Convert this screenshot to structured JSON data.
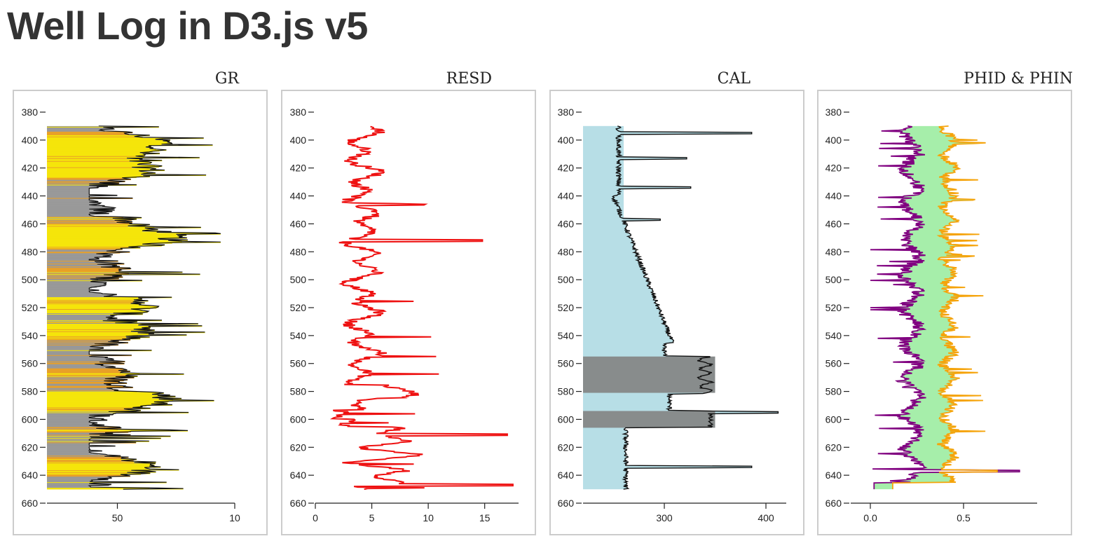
{
  "page": {
    "title": "Well Log in D3.js v5"
  },
  "colors": {
    "gr_fill": "#f5e50a",
    "gr_shale": "#e8a028",
    "gr_grey": "#999999",
    "resd_line": "#ee1111",
    "cal_fill": "#b7dee6",
    "cal_dark": "#888c8c",
    "phid_line": "#800080",
    "phin_line": "#f5a30a",
    "phi_fill": "#a6eeaa",
    "curve_line": "#111111"
  },
  "depth_axis": {
    "min": 380,
    "max": 660,
    "ticks": [
      "380",
      "400",
      "420",
      "440",
      "460",
      "480",
      "500",
      "520",
      "540",
      "560",
      "580",
      "600",
      "620",
      "640",
      "660"
    ]
  },
  "chart_data": [
    {
      "type": "line",
      "title": "GR",
      "xlabel": "",
      "ylabel": "",
      "xticks": [
        "50",
        "10"
      ],
      "series": [
        {
          "name": "GR",
          "depth_range": [
            390,
            650
          ],
          "approx_range": [
            20,
            95
          ]
        }
      ]
    },
    {
      "type": "line",
      "title": "RESD",
      "xlabel": "",
      "ylabel": "",
      "xlim": [
        0,
        18
      ],
      "xticks": [
        "0",
        "5",
        "10",
        "15"
      ],
      "series": [
        {
          "name": "RESD",
          "depth_range": [
            390,
            650
          ],
          "approx_range": [
            1.5,
            17.5
          ]
        }
      ]
    },
    {
      "type": "area",
      "title": "CAL",
      "xlabel": "",
      "ylabel": "",
      "xlim": [
        220,
        420
      ],
      "xticks": [
        "300",
        "400"
      ],
      "series": [
        {
          "name": "CAL",
          "depth_range": [
            390,
            650
          ],
          "approx_range": [
            230,
            412
          ]
        }
      ]
    },
    {
      "type": "line",
      "title": "PHID & PHIN",
      "xlabel": "",
      "ylabel": "",
      "xlim": [
        -0.05,
        0.9
      ],
      "xticks": [
        "0.0",
        "0.5"
      ],
      "series": [
        {
          "name": "PHID",
          "depth_range": [
            390,
            650
          ],
          "approx_range": [
            0.0,
            0.8
          ]
        },
        {
          "name": "PHIN",
          "depth_range": [
            390,
            650
          ],
          "approx_range": [
            0.1,
            0.65
          ]
        }
      ]
    }
  ]
}
